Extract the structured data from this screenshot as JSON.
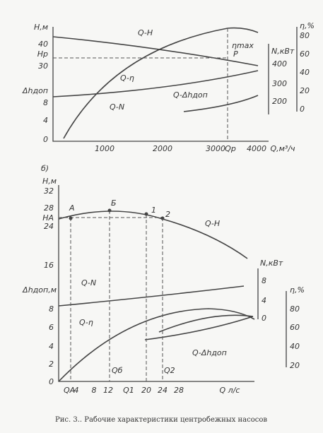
{
  "figure_a": {
    "left_axis": {
      "label": "H,м",
      "ticks": [
        40,
        30,
        8,
        4,
        0
      ],
      "mark_hp": "Hp",
      "mark_dh": "Δhдоп"
    },
    "x_axis": {
      "ticks": [
        1000,
        2000,
        3000,
        4000
      ],
      "mark_qp": "Qp",
      "label": "Q,м³/ч"
    },
    "n_axis": {
      "label": "N,кВт",
      "ticks": [
        400,
        300,
        200
      ]
    },
    "eta_axis": {
      "label": "η,%",
      "ticks": [
        80,
        60,
        40,
        20,
        0
      ]
    },
    "curve_labels": {
      "qh": "Q-H",
      "eta_max": "ηmax",
      "point_p": "P",
      "q_eta": "Q-η",
      "qn": "Q-N",
      "q_dh": "Q-Δhдоп"
    }
  },
  "figure_b": {
    "tag": "б)",
    "left_axis": {
      "label": "H,м",
      "ticks": [
        32,
        28,
        24,
        16,
        8,
        6,
        4,
        2,
        0
      ],
      "mark_ha": "HA",
      "mark_dh": "Δhдоп,м"
    },
    "points": {
      "a": "A",
      "b": "Б",
      "p1": "1",
      "p2": "2"
    },
    "x_axis": {
      "qa": "QA",
      "ticks": [
        4,
        8,
        12,
        20,
        24,
        28
      ],
      "q1": "Q1",
      "label": "Q л/с"
    },
    "n_axis": {
      "label": "N,кВт",
      "ticks": [
        8,
        4,
        0
      ]
    },
    "eta_axis": {
      "label": "η,%",
      "ticks": [
        80,
        60,
        40,
        20
      ]
    },
    "curve_labels": {
      "qh": "Q-H",
      "qn": "Q-N",
      "q_eta": "Q-η",
      "q_dh": "Q-Δhдоп",
      "qb": "Qб",
      "q2": "Q2"
    }
  },
  "caption": "Рис. 3.. Рабочие характеристики центробежных насосов"
}
